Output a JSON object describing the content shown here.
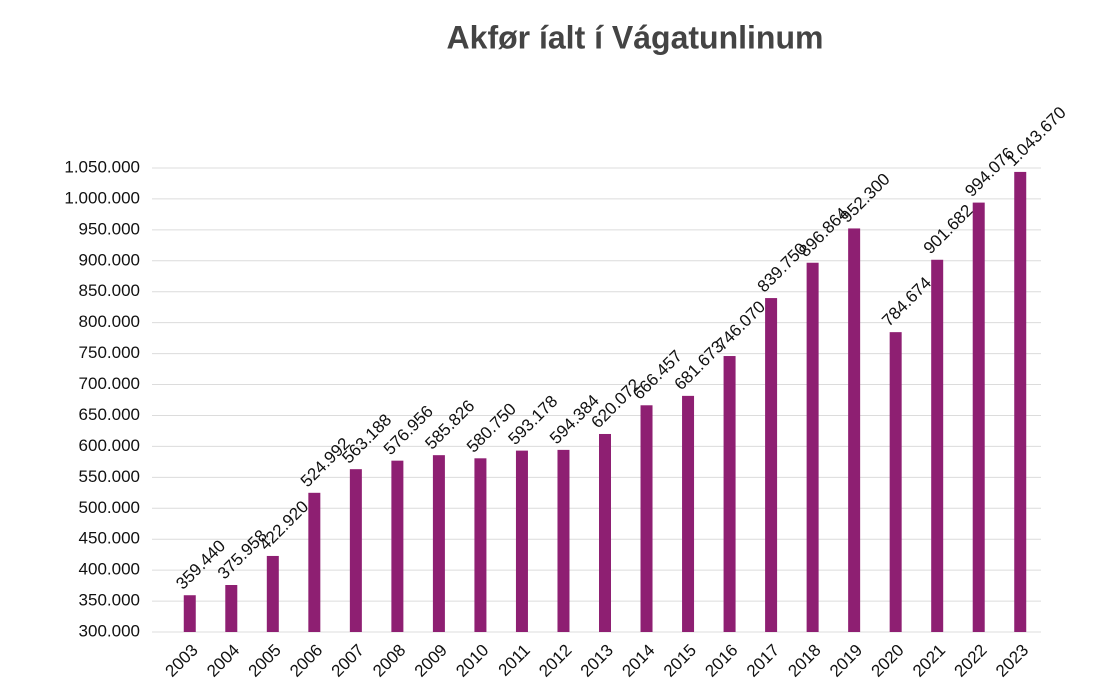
{
  "chart_data": {
    "type": "bar",
    "title": "Akfør íalt í Vágatunlinum",
    "categories": [
      "2003",
      "2004",
      "2005",
      "2006",
      "2007",
      "2008",
      "2009",
      "2010",
      "2011",
      "2012",
      "2013",
      "2014",
      "2015",
      "2016",
      "2017",
      "2018",
      "2019",
      "2020",
      "2021",
      "2022",
      "2023"
    ],
    "values": [
      359440,
      375958,
      422920,
      524992,
      563188,
      576956,
      585826,
      580750,
      593178,
      594384,
      620072,
      666457,
      681673,
      746070,
      839750,
      896864,
      952300,
      784674,
      901682,
      994076,
      1043670
    ],
    "value_labels": [
      "359.440",
      "375.958",
      "422.920",
      "524.992",
      "563.188",
      "576.956",
      "585.826",
      "580.750",
      "593.178",
      "594.384",
      "620.072",
      "666.457",
      "681.673",
      "746.070",
      "839.750",
      "896.864",
      "952.300",
      "784.674",
      "901.682",
      "994.076",
      "1.043.670"
    ],
    "color": "#8e1f72",
    "ylim": [
      300000,
      1050000
    ],
    "yticks": [
      {
        "value": 300000,
        "label": "300.000"
      },
      {
        "value": 350000,
        "label": "350.000"
      },
      {
        "value": 400000,
        "label": "400.000"
      },
      {
        "value": 450000,
        "label": "450.000"
      },
      {
        "value": 500000,
        "label": "500.000"
      },
      {
        "value": 550000,
        "label": "550.000"
      },
      {
        "value": 600000,
        "label": "600.000"
      },
      {
        "value": 650000,
        "label": "650.000"
      },
      {
        "value": 700000,
        "label": "700.000"
      },
      {
        "value": 750000,
        "label": "750.000"
      },
      {
        "value": 800000,
        "label": "800.000"
      },
      {
        "value": 850000,
        "label": "850.000"
      },
      {
        "value": 900000,
        "label": "900.000"
      },
      {
        "value": 950000,
        "label": "950.000"
      },
      {
        "value": 1000000,
        "label": "1.000.000"
      },
      {
        "value": 1050000,
        "label": "1.050.000"
      }
    ],
    "grid": true
  }
}
